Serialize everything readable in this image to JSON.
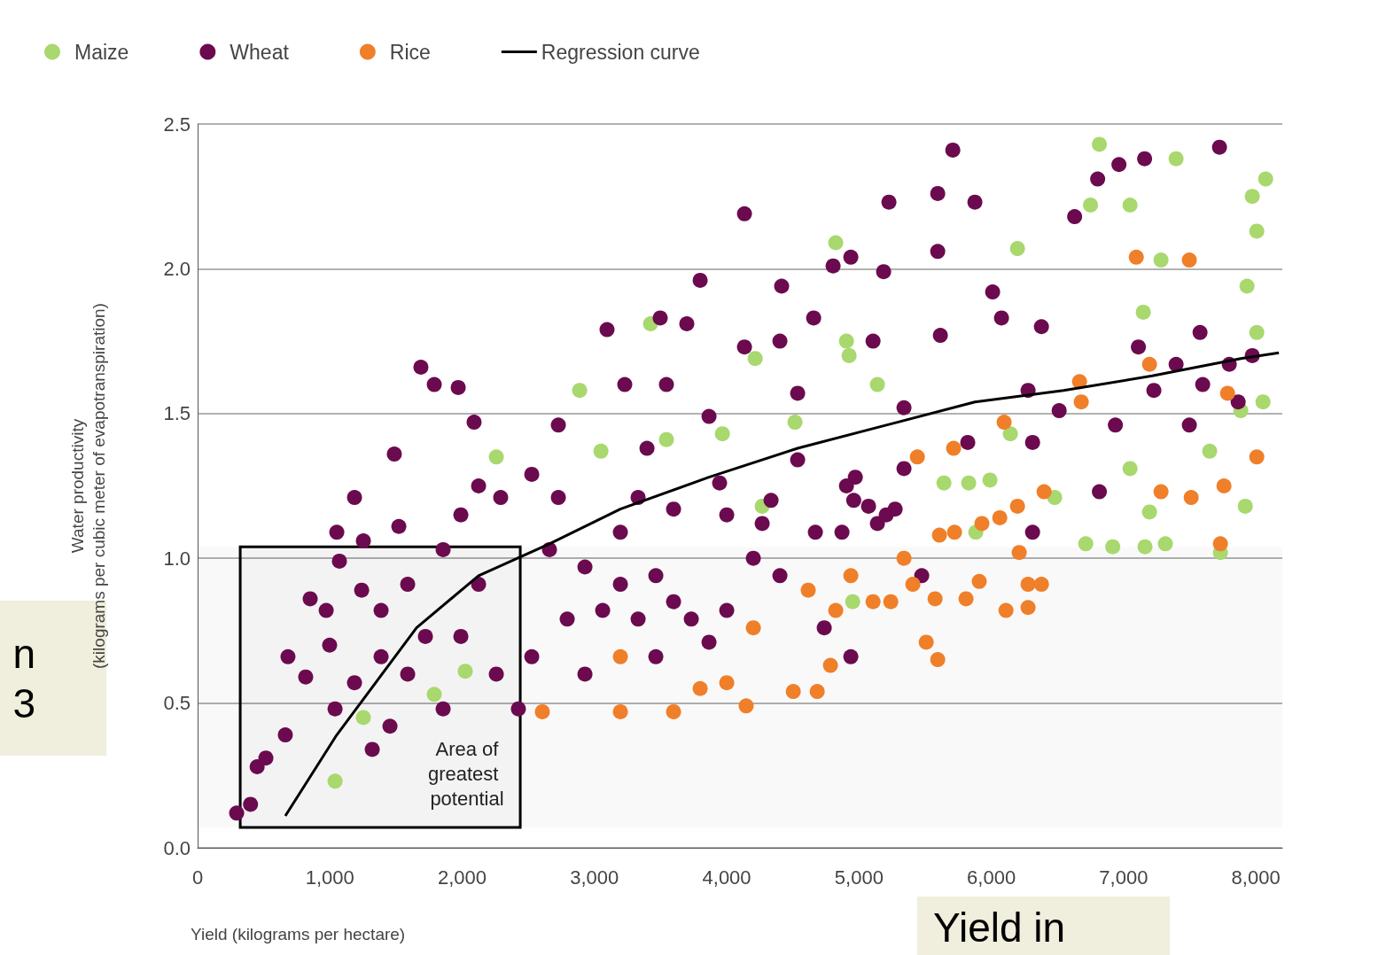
{
  "chart_data": {
    "type": "scatter",
    "xlabel": "Yield (kilograms per hectare)",
    "ylabel": "Water productivity\n(kilograms per cubic meter of evapotranspiration)",
    "xlim": [
      0,
      8200
    ],
    "ylim": [
      0,
      2.5
    ],
    "xticks": [
      0,
      {
        "value": 1000,
        "label": "1,000"
      },
      {
        "value": 2000,
        "label": "2,000"
      },
      {
        "value": 3000,
        "label": "3,000"
      },
      {
        "value": 4000,
        "label": "4,000"
      },
      {
        "value": 5000,
        "label": "5,000"
      },
      {
        "value": 6000,
        "label": "6,000"
      },
      {
        "value": 7000,
        "label": "7,000"
      },
      {
        "value": 8000,
        "label": "8,000"
      }
    ],
    "yticks": [
      {
        "value": 0,
        "label": "0.0"
      },
      0.5,
      {
        "value": 1,
        "label": "1.0"
      },
      1.5,
      {
        "value": 2,
        "label": "2.0"
      },
      2.5
    ],
    "grid": "y",
    "legend": "top left",
    "marker": "circle",
    "series": [
      {
        "name": "Maize",
        "color": "#a8d86e",
        "x": [
          1039,
          1253,
          1789,
          2023,
          2258,
          2888,
          3049,
          3424,
          3544,
          3967,
          4215,
          4268,
          4516,
          4824,
          4905,
          4925,
          4952,
          5139,
          5642,
          5829,
          5990,
          6198,
          6144,
          6479,
          6714,
          6817,
          6750,
          6918,
          7049,
          7049,
          7149,
          7162,
          7196,
          7283,
          7316,
          7397,
          7651,
          7732,
          7886,
          7920,
          7933,
          7973,
          8007,
          8007,
          8074,
          8054,
          5883
        ],
        "values": [
          0.23,
          0.45,
          0.53,
          0.61,
          1.35,
          1.58,
          1.37,
          1.81,
          1.41,
          1.43,
          1.69,
          1.18,
          1.47,
          2.09,
          1.75,
          1.7,
          0.85,
          1.6,
          1.26,
          1.26,
          1.27,
          2.07,
          1.43,
          1.21,
          1.05,
          2.43,
          2.22,
          1.04,
          2.22,
          1.31,
          1.85,
          1.04,
          1.16,
          2.03,
          1.05,
          2.38,
          1.37,
          1.02,
          1.51,
          1.18,
          1.94,
          2.25,
          2.13,
          1.78,
          2.31,
          1.54,
          1.09
        ]
      },
      {
        "name": "Wheat",
        "color": "#6b0a4f",
        "x": [
          295,
          400,
          450,
          516,
          663,
          683,
          851,
          817,
          972,
          998,
          1039,
          1072,
          1253,
          1240,
          1387,
          1487,
          1521,
          1688,
          1789,
          1970,
          2090,
          1856,
          1990,
          2124,
          2291,
          2425,
          2526,
          2727,
          2727,
          2928,
          3095,
          3229,
          3397,
          3464,
          3497,
          3544,
          3698,
          3799,
          3866,
          3946,
          3866,
          4134,
          4134,
          4335,
          4415,
          4402,
          4536,
          4657,
          4737,
          4804,
          4938,
          4938,
          4972,
          5106,
          5186,
          5226,
          5072,
          5206,
          5474,
          5595,
          5595,
          5709,
          5615,
          5876,
          5822,
          6010,
          6077,
          6278,
          6312,
          6379,
          6312,
          6513,
          6630,
          6804,
          6965,
          6938,
          6817,
          7159,
          7112,
          7229,
          7397,
          7497,
          7578,
          7598,
          7725,
          7799,
          7866,
          7973,
          4905,
          4960,
          5139,
          5273,
          4871,
          5340,
          5340,
          2660,
          2794,
          2928,
          3062,
          3196,
          3330,
          3464,
          3598,
          3732,
          3196,
          3330,
          3598,
          4000,
          4201,
          4402,
          2526,
          2258,
          1722,
          1588,
          1387,
          1186,
          1052,
          1186,
          1990,
          2124,
          1588,
          1856,
          1454,
          1320,
          4000,
          4268,
          4536,
          4670
        ],
        "values": [
          0.12,
          0.15,
          0.28,
          0.31,
          0.39,
          0.66,
          0.86,
          0.59,
          0.82,
          0.7,
          0.48,
          0.99,
          1.06,
          0.89,
          0.82,
          1.36,
          1.11,
          1.66,
          1.6,
          1.59,
          1.47,
          1.03,
          0.73,
          0.91,
          1.21,
          0.48,
          1.29,
          1.21,
          1.46,
          0.97,
          1.79,
          1.6,
          1.38,
          0.66,
          1.83,
          1.6,
          1.81,
          1.96,
          1.49,
          1.26,
          0.71,
          2.19,
          1.73,
          1.2,
          1.94,
          1.75,
          1.57,
          1.83,
          0.76,
          2.01,
          2.04,
          0.66,
          1.28,
          1.75,
          1.99,
          2.23,
          1.18,
          1.15,
          0.94,
          2.26,
          2.06,
          2.41,
          1.77,
          2.23,
          1.4,
          1.92,
          1.83,
          1.58,
          1.4,
          1.8,
          1.09,
          1.51,
          2.18,
          2.31,
          2.36,
          1.46,
          1.23,
          2.38,
          1.73,
          1.58,
          1.67,
          1.46,
          1.78,
          1.6,
          2.42,
          1.67,
          1.54,
          1.7,
          1.25,
          1.2,
          1.12,
          1.17,
          1.09,
          1.31,
          1.52,
          1.03,
          0.79,
          0.6,
          0.82,
          0.91,
          0.79,
          0.94,
          0.85,
          0.79,
          1.09,
          1.21,
          1.17,
          1.15,
          1,
          0.94,
          0.66,
          0.6,
          0.73,
          0.91,
          0.66,
          0.57,
          1.09,
          1.21,
          1.15,
          1.25,
          0.6,
          0.48,
          0.42,
          0.34,
          0.82,
          1.12,
          1.34,
          1.09
        ]
      },
      {
        "name": "Rice",
        "color": "#f07f2a",
        "x": [
          2606,
          3196,
          3196,
          3598,
          3799,
          4000,
          4147,
          4201,
          4503,
          4684,
          4784,
          4824,
          4616,
          4938,
          5106,
          5240,
          5340,
          5407,
          5508,
          5595,
          5608,
          5722,
          5575,
          5809,
          5909,
          5929,
          6064,
          6097,
          6111,
          6198,
          6211,
          6278,
          6278,
          6379,
          6399,
          6680,
          6667,
          7096,
          7196,
          7283,
          7497,
          7511,
          7732,
          7759,
          7786,
          8007,
          5441,
          5715
        ],
        "values": [
          0.47,
          0.47,
          0.66,
          0.47,
          0.55,
          0.57,
          0.49,
          0.76,
          0.54,
          0.54,
          0.63,
          0.82,
          0.89,
          0.94,
          0.85,
          0.85,
          1,
          0.91,
          0.71,
          0.65,
          1.08,
          1.09,
          0.86,
          0.86,
          0.92,
          1.12,
          1.14,
          1.47,
          0.82,
          1.18,
          1.02,
          0.91,
          0.83,
          0.91,
          1.23,
          1.54,
          1.61,
          2.04,
          1.67,
          1.23,
          2.03,
          1.21,
          1.05,
          1.25,
          1.57,
          1.35,
          1.35,
          1.38
        ]
      },
      {
        "name": "Regression curve",
        "type": "line",
        "marker": "none",
        "color": "#000000",
        "line_style": "solid",
        "x": [
          663,
          1052,
          1655,
          2124,
          2660,
          3196,
          3866,
          4536,
          5206,
          5876,
          6546,
          7216,
          7886,
          8174
        ],
        "values": [
          0.11,
          0.39,
          0.76,
          0.94,
          1.05,
          1.17,
          1.28,
          1.38,
          1.46,
          1.54,
          1.58,
          1.63,
          1.69,
          1.71
        ]
      }
    ],
    "bands": [
      {
        "axis": "x",
        "from": 322,
        "to": 2439,
        "label": "Area of greatest potential",
        "color": "#000000"
      },
      {
        "axis": "y",
        "from": 0.07,
        "to": 1.04
      }
    ],
    "annotations": [
      "n\n3",
      "Yield in"
    ]
  }
}
